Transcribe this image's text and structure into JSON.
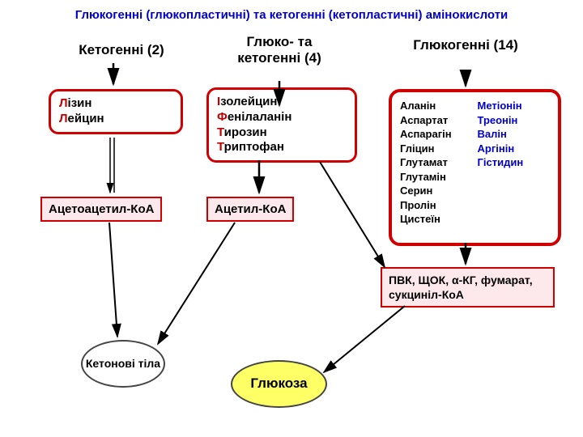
{
  "title": "Глюкогенні (глюкопластичні) та кетогенні (кетопластичні) амінокислоти",
  "headers": {
    "keto": "Кетогенні (2)",
    "both": "Глюко- та кетогенні (4)",
    "gluco": "Глюкогенні (14)"
  },
  "keto_box": {
    "items": [
      {
        "hl": "Л",
        "rest": "ізин"
      },
      {
        "hl": "Л",
        "rest": "ейцин"
      }
    ]
  },
  "both_box": {
    "items": [
      {
        "hl": "І",
        "rest": "золейцин"
      },
      {
        "hl": "Ф",
        "rest": "енілаланін"
      },
      {
        "hl": "Т",
        "rest": "ирозин"
      },
      {
        "hl": "Т",
        "rest": "риптофан"
      }
    ]
  },
  "gluco_box": {
    "left": [
      "Аланін",
      "Аспартат",
      "Аспарагін",
      "Гліцин",
      "Глутамат",
      "Глутамін",
      "Серин",
      "Пролін",
      "Цистеїн"
    ],
    "right": [
      "Метіонін",
      "Треонін",
      "Валін",
      "Аргінін",
      "Гістидин"
    ]
  },
  "mid_boxes": {
    "acetoacetyl": "Ацетоацетил-КоА",
    "acetyl": "Ацетил-КоА",
    "intermediates": "ПВК, ЩОК, α-КГ, фумарат, сукциніл-КоА"
  },
  "endpoints": {
    "ketone": "Кетонові тіла",
    "glucose": "Глюкоза"
  },
  "layout": {
    "colors": {
      "red": "#d00000",
      "pink": "#fde8ec",
      "blue": "#0000cc",
      "yellow": "#ffff66",
      "black": "#000000"
    }
  }
}
